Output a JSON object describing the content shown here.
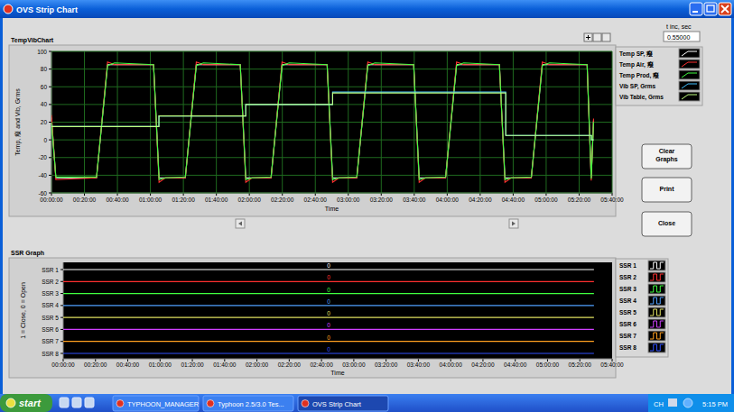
{
  "window": {
    "title": "OVS Strip Chart"
  },
  "t_inc": {
    "label": "t inc, sec",
    "value": "0.55000"
  },
  "buttons": [
    "Clear Graphs",
    "Print",
    "Close"
  ],
  "chart_data": [
    {
      "type": "line",
      "title": "TempVibChart",
      "x_label": "Time",
      "y_label": "Temp, 癈 and Vib, Grms",
      "xlim": [
        0,
        20400
      ],
      "xticks": [
        {
          "value": 0,
          "label": "00:00:00"
        },
        {
          "value": 1200,
          "label": "00:20:00"
        },
        {
          "value": 2400,
          "label": "00:40:00"
        },
        {
          "value": 3600,
          "label": "01:00:00"
        },
        {
          "value": 4800,
          "label": "01:20:00"
        },
        {
          "value": 6000,
          "label": "01:40:00"
        },
        {
          "value": 7200,
          "label": "02:00:00"
        },
        {
          "value": 8400,
          "label": "02:20:00"
        },
        {
          "value": 9600,
          "label": "02:40:00"
        },
        {
          "value": 10800,
          "label": "03:00:00"
        },
        {
          "value": 12000,
          "label": "03:20:00"
        },
        {
          "value": 13200,
          "label": "03:40:00"
        },
        {
          "value": 14400,
          "label": "04:00:00"
        },
        {
          "value": 15600,
          "label": "04:20:00"
        },
        {
          "value": 16800,
          "label": "04:40:00"
        },
        {
          "value": 18000,
          "label": "05:00:00"
        },
        {
          "value": 19200,
          "label": "05:20:00"
        },
        {
          "value": 20400,
          "label": "05:40:00"
        }
      ],
      "ylim": [
        -60,
        100
      ],
      "yticks": [
        -60,
        -40,
        -20,
        0,
        20,
        40,
        60,
        80,
        100
      ],
      "grid": true,
      "legend": "right",
      "series": [
        {
          "name": "Temp SP, 癈",
          "color": "#ffffff",
          "x": [
            0,
            160,
            1640,
            2040,
            2300,
            3715,
            3915,
            4145,
            4870,
            5270,
            5530,
            6870,
            7070,
            7300,
            7990,
            8390,
            8650,
            10030,
            10230,
            10460,
            11110,
            11510,
            11770,
            13180,
            13380,
            13610,
            14340,
            14740,
            15000,
            16300,
            16500,
            16730,
            17460,
            17860,
            18120,
            19490,
            19640,
            19725
          ],
          "values": [
            25,
            -43,
            -43,
            85,
            85,
            85,
            -43,
            -43,
            -43,
            85,
            85,
            85,
            -43,
            -43,
            -43,
            85,
            85,
            85,
            -43,
            -43,
            -43,
            85,
            85,
            85,
            -43,
            -43,
            -43,
            85,
            85,
            85,
            -43,
            -43,
            -43,
            85,
            85,
            85,
            -43,
            22
          ]
        },
        {
          "name": "Temp Air, 癈",
          "color": "#ff3030",
          "x": [
            0,
            160,
            1640,
            2040,
            2300,
            3715,
            3915,
            4145,
            4870,
            5270,
            5530,
            6870,
            7070,
            7300,
            7990,
            8390,
            8650,
            10030,
            10230,
            10460,
            11110,
            11510,
            11770,
            13180,
            13380,
            13610,
            14340,
            14740,
            15000,
            16300,
            16500,
            16730,
            17460,
            17860,
            18120,
            19490,
            19640,
            19725
          ],
          "values": [
            28,
            -45,
            -43,
            88,
            85,
            85,
            -48,
            -43,
            -43,
            88,
            85,
            85,
            -48,
            -43,
            -43,
            88,
            85,
            85,
            -48,
            -43,
            -43,
            88,
            85,
            85,
            -48,
            -43,
            -43,
            88,
            85,
            85,
            -48,
            -43,
            -43,
            88,
            85,
            85,
            -46,
            24
          ]
        },
        {
          "name": "Temp Prod, 癈",
          "color": "#40ff40",
          "x": [
            0,
            160,
            1640,
            2040,
            2300,
            3715,
            3915,
            4145,
            4870,
            5270,
            5530,
            6870,
            7070,
            7300,
            7990,
            8390,
            8650,
            10030,
            10230,
            10460,
            11110,
            11510,
            11770,
            13180,
            13380,
            13610,
            14340,
            14740,
            15000,
            16300,
            16500,
            16730,
            17460,
            17860,
            18120,
            19490,
            19640,
            19725
          ],
          "values": [
            20,
            -42,
            -42,
            84,
            87,
            85,
            -45,
            -43,
            -42,
            84,
            87,
            85,
            -45,
            -43,
            -42,
            84,
            87,
            85,
            -45,
            -43,
            -42,
            84,
            87,
            85,
            -45,
            -43,
            -42,
            84,
            87,
            85,
            -45,
            -43,
            -42,
            84,
            87,
            85,
            -44,
            20
          ]
        },
        {
          "name": "Vib SP, Grms",
          "color": "#40c0ff",
          "x": [
            0,
            3910,
            3910,
            7070,
            7070,
            10230,
            10230,
            16530,
            16530,
            19650,
            19650,
            19725
          ],
          "values": [
            15,
            15,
            27,
            27,
            40,
            40,
            54,
            54,
            5,
            5,
            0,
            0
          ]
        },
        {
          "name": "Vib Table, Grms",
          "color": "#c0ff80",
          "x": [
            0,
            3910,
            3910,
            7070,
            7070,
            10230,
            10230,
            16530,
            16530,
            19650,
            19650,
            19725
          ],
          "values": [
            15,
            15,
            27,
            27,
            40,
            40,
            53,
            53,
            5,
            5,
            0,
            0
          ]
        }
      ]
    },
    {
      "type": "digital",
      "title": "SSR Graph",
      "x_label": "Time",
      "y_label": "1 = Close, 0 = Open",
      "categories": [
        "SSR 1",
        "SSR 2",
        "SSR 3",
        "SSR 4",
        "SSR 5",
        "SSR 6",
        "SSR 7",
        "SSR 8"
      ],
      "xlim": [
        0,
        20400
      ],
      "xticks": [
        {
          "value": 0,
          "label": "00:00:00"
        },
        {
          "value": 1200,
          "label": "00:20:00"
        },
        {
          "value": 2400,
          "label": "00:40:00"
        },
        {
          "value": 3600,
          "label": "01:00:00"
        },
        {
          "value": 4800,
          "label": "01:20:00"
        },
        {
          "value": 6000,
          "label": "01:40:00"
        },
        {
          "value": 7200,
          "label": "02:00:00"
        },
        {
          "value": 8400,
          "label": "02:20:00"
        },
        {
          "value": 9600,
          "label": "02:40:00"
        },
        {
          "value": 10800,
          "label": "03:00:00"
        },
        {
          "value": 12000,
          "label": "03:20:00"
        },
        {
          "value": 13200,
          "label": "03:40:00"
        },
        {
          "value": 14400,
          "label": "04:00:00"
        },
        {
          "value": 15600,
          "label": "04:20:00"
        },
        {
          "value": 16800,
          "label": "04:40:00"
        },
        {
          "value": 18000,
          "label": "05:00:00"
        },
        {
          "value": 19200,
          "label": "05:20:00"
        },
        {
          "value": 20400,
          "label": "05:40:00"
        }
      ],
      "grid": false,
      "legend": "right",
      "data_labels": true,
      "series": [
        {
          "name": "SSR 1",
          "color": "#ffffff",
          "x": [
            0,
            19725
          ],
          "values": [
            0,
            0
          ]
        },
        {
          "name": "SSR 2",
          "color": "#ff3030",
          "x": [
            0,
            19725
          ],
          "values": [
            0,
            0
          ]
        },
        {
          "name": "SSR 3",
          "color": "#40ff40",
          "x": [
            0,
            19725
          ],
          "values": [
            0,
            0
          ]
        },
        {
          "name": "SSR 4",
          "color": "#50a0ff",
          "x": [
            0,
            19725
          ],
          "values": [
            0,
            0
          ]
        },
        {
          "name": "SSR 5",
          "color": "#e0e060",
          "x": [
            0,
            19725
          ],
          "values": [
            0,
            0
          ]
        },
        {
          "name": "SSR 6",
          "color": "#d040ff",
          "x": [
            0,
            19725
          ],
          "values": [
            0,
            0
          ]
        },
        {
          "name": "SSR 7",
          "color": "#ffa020",
          "x": [
            0,
            19725
          ],
          "values": [
            0,
            0
          ]
        },
        {
          "name": "SSR 8",
          "color": "#3050ff",
          "x": [
            0,
            19725
          ],
          "values": [
            0,
            0
          ]
        }
      ]
    }
  ],
  "taskbar": {
    "start": "start",
    "tasks": [
      "TYPHOON_MANAGER",
      "Typhoon 2.5/3.0 Tes...",
      "OVS Strip Chart"
    ],
    "tray": [
      "CH",
      "5:15 PM"
    ]
  }
}
